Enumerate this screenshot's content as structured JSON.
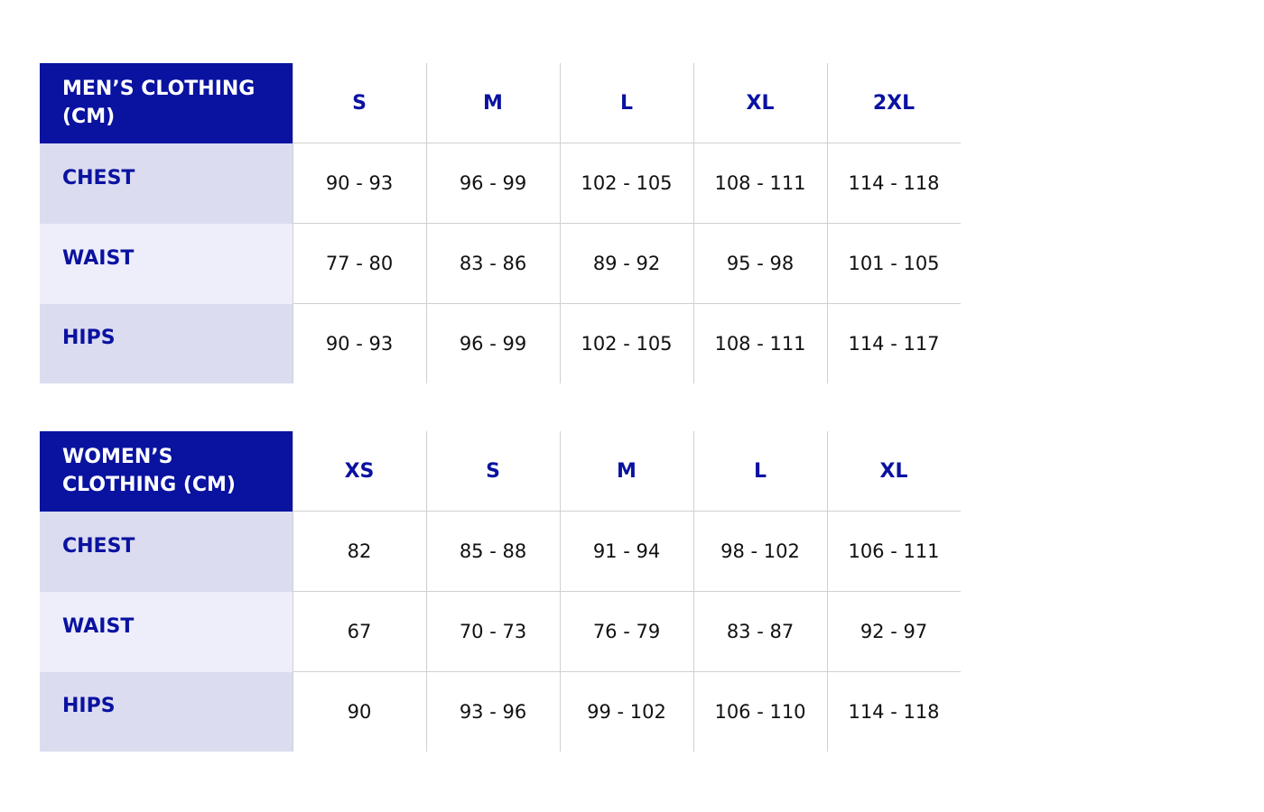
{
  "tables": [
    {
      "title": "MEN’S CLOTHING (CM)",
      "sizes": [
        "S",
        "M",
        "L",
        "XL",
        "2XL"
      ],
      "rows": [
        {
          "label": "CHEST",
          "values": [
            "90 - 93",
            "96 - 99",
            "102 - 105",
            "108 - 111",
            "114 - 118"
          ]
        },
        {
          "label": "WAIST",
          "values": [
            "77 - 80",
            "83 - 86",
            "89 - 92",
            "95 - 98",
            "101 - 105"
          ]
        },
        {
          "label": "HIPS",
          "values": [
            "90 - 93",
            "96 - 99",
            "102 - 105",
            "108 - 111",
            "114 - 117"
          ]
        }
      ]
    },
    {
      "title": "WOMEN’S CLOTHING (CM)",
      "sizes": [
        "XS",
        "S",
        "M",
        "L",
        "XL"
      ],
      "rows": [
        {
          "label": "CHEST",
          "values": [
            "82",
            "85 - 88",
            "91 - 94",
            "98 - 102",
            "106 - 111"
          ]
        },
        {
          "label": "WAIST",
          "values": [
            "67",
            "70 - 73",
            "76 - 79",
            "83 - 87",
            "92 - 97"
          ]
        },
        {
          "label": "HIPS",
          "values": [
            "90",
            "93 - 96",
            "99 - 102",
            "106 - 110",
            "114 - 118"
          ]
        }
      ]
    }
  ]
}
